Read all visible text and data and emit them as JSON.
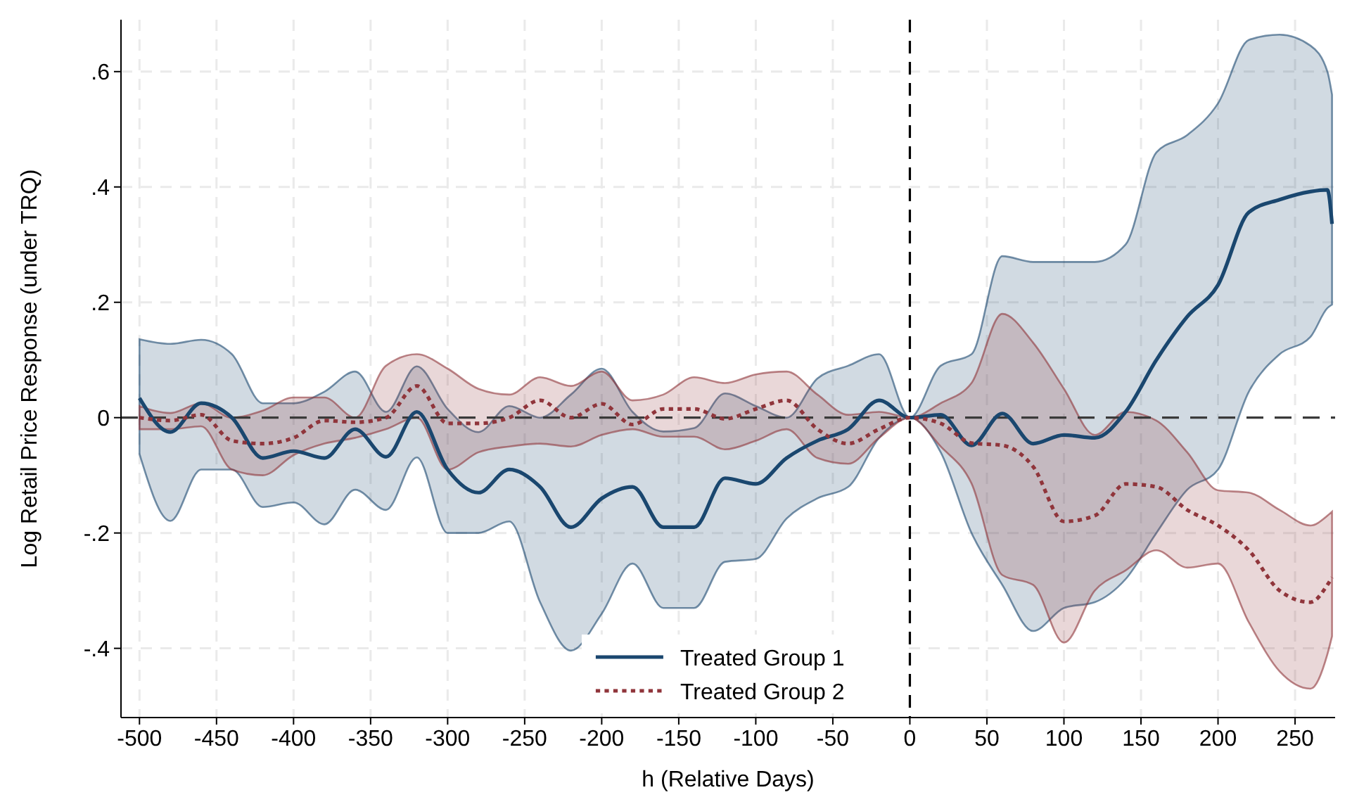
{
  "chart_data": {
    "type": "line",
    "xlabel": "h (Relative Days)",
    "ylabel": "Log Retail Price Response (under TRQ)",
    "x": [
      -500,
      -480,
      -460,
      -440,
      -420,
      -400,
      -380,
      -360,
      -340,
      -320,
      -300,
      -280,
      -260,
      -240,
      -220,
      -200,
      -180,
      -160,
      -140,
      -120,
      -100,
      -80,
      -60,
      -40,
      -20,
      0,
      20,
      40,
      60,
      80,
      100,
      120,
      140,
      160,
      180,
      200,
      220,
      240,
      260,
      271,
      274
    ],
    "xlim": [
      -512,
      276
    ],
    "xticks": [
      -500,
      -450,
      -400,
      -350,
      -300,
      -250,
      -200,
      -150,
      -100,
      -50,
      0,
      50,
      100,
      150,
      200,
      250
    ],
    "ylim": [
      -0.52,
      0.69
    ],
    "yticks": [
      {
        "value": -0.4,
        "label": "-.4"
      },
      {
        "value": -0.2,
        "label": "-.2"
      },
      0,
      {
        "value": 0.2,
        "label": ".2"
      },
      {
        "value": 0.4,
        "label": ".4"
      },
      {
        "value": 0.6,
        "label": ".6"
      }
    ],
    "grid": true,
    "legend": "bottom",
    "ref_lines": [
      {
        "axis": "x",
        "value": 0,
        "color": "#000000",
        "line_style": "dashed"
      },
      {
        "axis": "y",
        "value": 0,
        "color": "#3a3a3a",
        "line_style": "dashed"
      }
    ],
    "series": [
      {
        "name": "Treated Group 1",
        "color": "#1a476f",
        "line_style": "solid",
        "values": [
          0.034,
          -0.025,
          0.025,
          0.0,
          -0.07,
          -0.058,
          -0.07,
          -0.02,
          -0.068,
          0.01,
          -0.09,
          -0.13,
          -0.09,
          -0.12,
          -0.19,
          -0.14,
          -0.12,
          -0.19,
          -0.19,
          -0.105,
          -0.115,
          -0.07,
          -0.04,
          -0.02,
          0.03,
          0,
          0.005,
          -0.048,
          0.007,
          -0.045,
          -0.03,
          -0.035,
          0.01,
          0.1,
          0.175,
          0.23,
          0.356,
          0.378,
          0.392,
          0.395,
          0.336
        ],
        "upper": [
          0.136,
          0.128,
          0.135,
          0.11,
          0.025,
          0.025,
          0.045,
          0.08,
          0.01,
          0.089,
          0.015,
          -0.025,
          0.02,
          0.0,
          0.04,
          0.085,
          0.01,
          -0.024,
          -0.018,
          0.042,
          0.02,
          0.0,
          0.068,
          0.09,
          0.11,
          0,
          0.09,
          0.11,
          0.28,
          0.27,
          0.27,
          0.27,
          0.3,
          0.46,
          0.49,
          0.545,
          0.655,
          0.664,
          0.645,
          0.6,
          0.56
        ],
        "lower": [
          -0.063,
          -0.179,
          -0.09,
          -0.09,
          -0.155,
          -0.147,
          -0.185,
          -0.125,
          -0.16,
          -0.069,
          -0.2,
          -0.2,
          -0.18,
          -0.32,
          -0.404,
          -0.34,
          -0.253,
          -0.33,
          -0.33,
          -0.25,
          -0.245,
          -0.175,
          -0.14,
          -0.12,
          -0.035,
          0,
          -0.06,
          -0.2,
          -0.29,
          -0.37,
          -0.33,
          -0.32,
          -0.28,
          -0.2,
          -0.125,
          -0.09,
          0.045,
          0.11,
          0.14,
          0.19,
          0.196
        ]
      },
      {
        "name": "Treated Group 2",
        "color": "#90353b",
        "line_style": "dotted",
        "values": [
          0,
          -0.005,
          0.005,
          -0.04,
          -0.045,
          -0.035,
          -0.005,
          -0.008,
          0.0,
          0.055,
          -0.01,
          -0.01,
          0.0,
          0.03,
          0.0,
          0.024,
          -0.012,
          0.015,
          0.015,
          -0.002,
          0.015,
          0.03,
          -0.02,
          -0.045,
          -0.02,
          0,
          -0.01,
          -0.044,
          -0.048,
          -0.085,
          -0.18,
          -0.17,
          -0.115,
          -0.12,
          -0.16,
          -0.187,
          -0.23,
          -0.3,
          -0.32,
          -0.29,
          -0.277
        ],
        "upper": [
          0.02,
          0.008,
          0.025,
          0.0,
          0.012,
          0.035,
          0.035,
          0.0,
          0.09,
          0.11,
          0.085,
          0.05,
          0.04,
          0.07,
          0.055,
          0.08,
          0.03,
          0.04,
          0.07,
          0.06,
          0.075,
          0.08,
          0.04,
          0.005,
          0.01,
          0,
          0.025,
          0.06,
          0.18,
          0.13,
          0.05,
          -0.03,
          0.01,
          -0.005,
          -0.06,
          -0.126,
          -0.13,
          -0.16,
          -0.187,
          -0.17,
          -0.163
        ],
        "lower": [
          -0.02,
          -0.02,
          -0.015,
          -0.09,
          -0.1,
          -0.065,
          -0.045,
          -0.035,
          -0.02,
          0.0,
          -0.09,
          -0.06,
          -0.05,
          -0.045,
          -0.05,
          -0.03,
          -0.02,
          -0.033,
          -0.033,
          -0.055,
          -0.04,
          -0.02,
          -0.07,
          -0.08,
          -0.035,
          0,
          -0.05,
          -0.114,
          -0.273,
          -0.29,
          -0.39,
          -0.3,
          -0.265,
          -0.23,
          -0.26,
          -0.253,
          -0.355,
          -0.44,
          -0.47,
          -0.41,
          -0.379
        ]
      }
    ]
  }
}
